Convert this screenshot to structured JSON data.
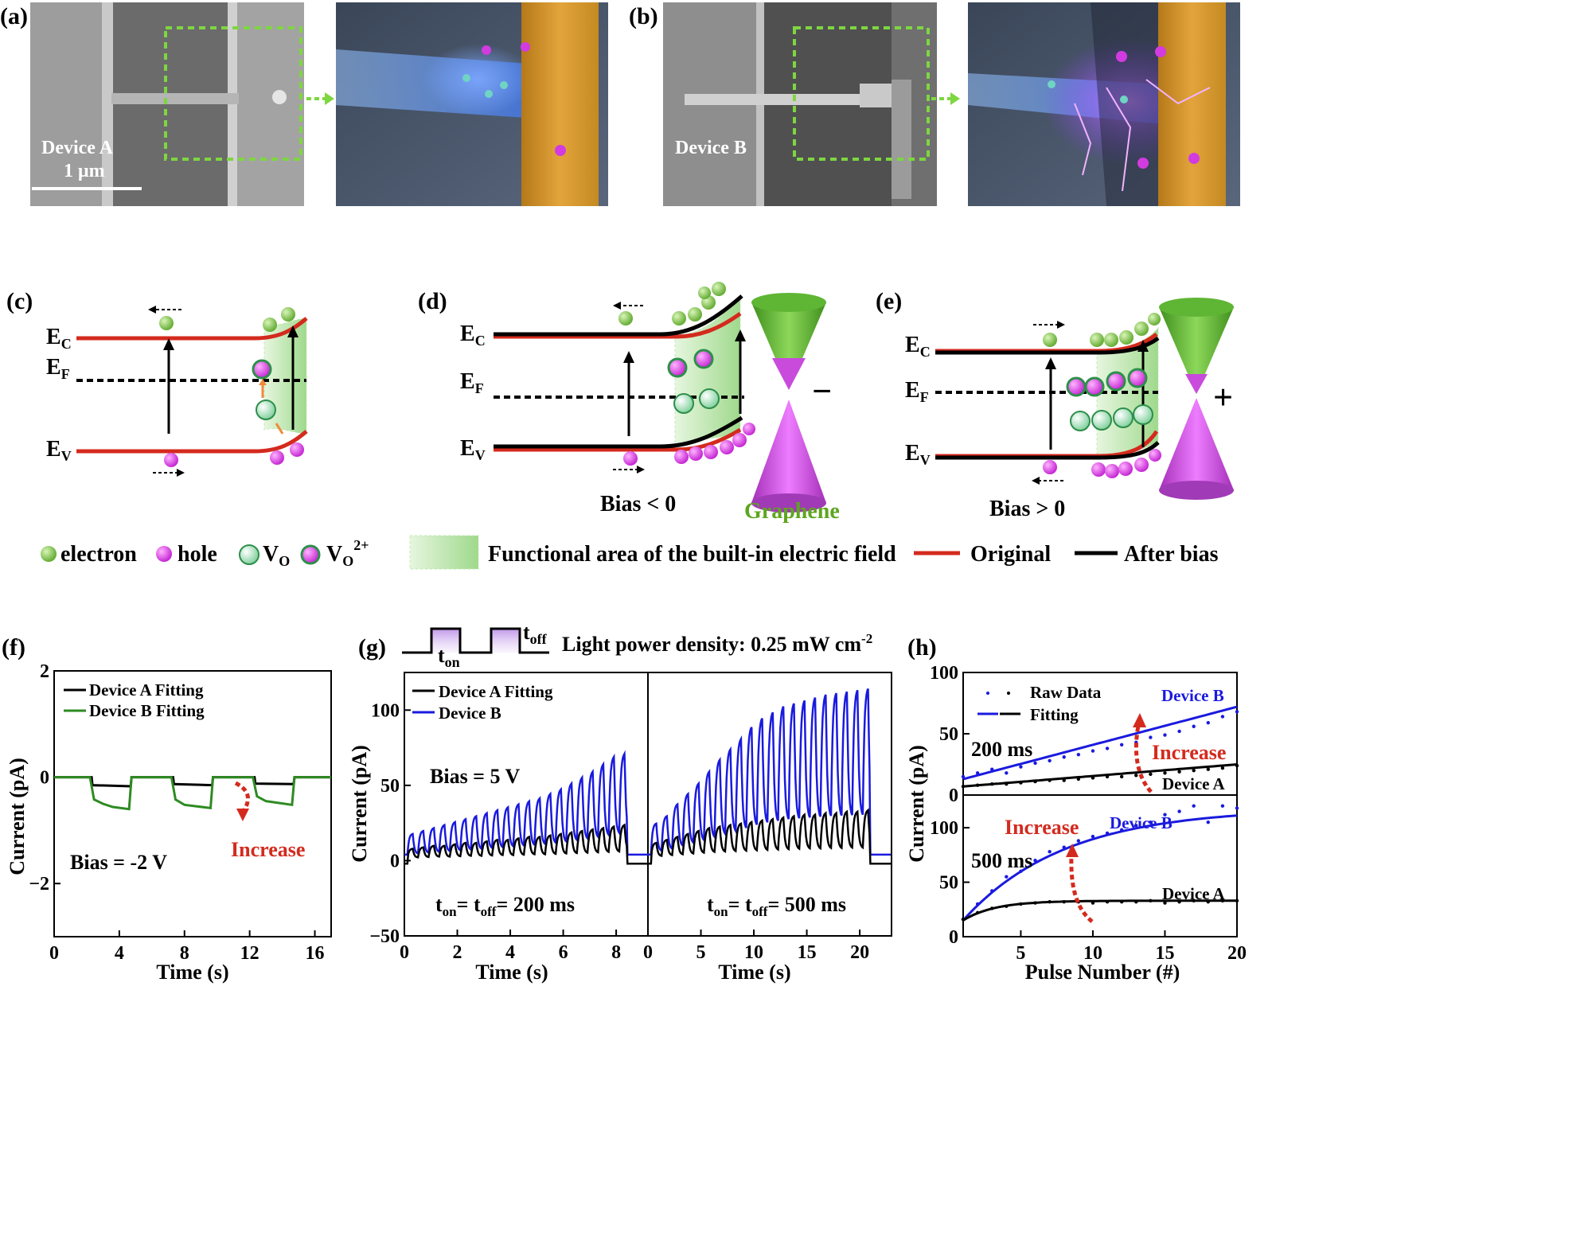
{
  "panels": {
    "a": {
      "label": "(a)",
      "device": "Device A",
      "scale": "1 μm"
    },
    "b": {
      "label": "(b)",
      "device": "Device B"
    },
    "c": {
      "label": "(c)",
      "ec": "E",
      "ec_sub": "C",
      "ef": "E",
      "ef_sub": "F",
      "ev": "E",
      "ev_sub": "V"
    },
    "d": {
      "label": "(d)",
      "ec": "E",
      "ec_sub": "C",
      "ef": "E",
      "ef_sub": "F",
      "ev": "E",
      "ev_sub": "V",
      "bias": "Bias < 0",
      "graphene": "Graphene",
      "sign": "−"
    },
    "e": {
      "label": "(e)",
      "ec": "E",
      "ec_sub": "C",
      "ef": "E",
      "ef_sub": "F",
      "ev": "E",
      "ev_sub": "V",
      "bias": "Bias > 0",
      "sign": "+"
    },
    "f": {
      "label": "(f)"
    },
    "g": {
      "label": "(g)",
      "pulse_on": "t",
      "pulse_on_sub": "on",
      "pulse_off": "t",
      "pulse_off_sub": "off",
      "light_power": "Light power density: 0.25 mW cm",
      "light_power_sup": "-2"
    },
    "h": {
      "label": "(h)"
    }
  },
  "legend": {
    "electron": "electron",
    "hole": "hole",
    "vo": "V",
    "vo_sub": "O",
    "vo2": "V",
    "vo2_sub": "O",
    "vo2_sup": "2+",
    "field": "Functional area of the built-in electric field",
    "original": "Original",
    "after_bias": "After bias"
  },
  "colors": {
    "original": "#d42a1e",
    "after_bias": "#000000",
    "device_a": "#000000",
    "device_b_f": "#2e8b22",
    "device_b": "#1a1adf",
    "increase": "#d42a1e",
    "electron": "#7dc243",
    "hole": "#d23be0",
    "field": "#9fd98c"
  },
  "chart_data": [
    {
      "id": "f",
      "type": "line",
      "title": "",
      "xlabel": "Time (s)",
      "ylabel": "Current (pA)",
      "xlim": [
        0,
        17
      ],
      "ylim": [
        -3,
        2
      ],
      "xticks": [
        0,
        4,
        8,
        12,
        16
      ],
      "yticks": [
        -2,
        0,
        2
      ],
      "series": [
        {
          "name": "Device A Fitting",
          "color": "#000000",
          "x": [
            0,
            2.3,
            2.35,
            4.7,
            4.75,
            7.3,
            7.35,
            9.7,
            9.75,
            12.3,
            12.35,
            14.7,
            14.75,
            17
          ],
          "y": [
            0,
            0,
            -0.15,
            -0.17,
            0,
            0,
            -0.13,
            -0.15,
            0,
            0,
            -0.12,
            -0.13,
            0,
            0
          ]
        },
        {
          "name": "Device B Fitting",
          "color": "#2e8b22",
          "x": [
            0,
            2.2,
            2.45,
            3.0,
            3.6,
            4.6,
            4.75,
            7.2,
            7.45,
            8.0,
            9.6,
            9.75,
            12.2,
            12.45,
            13.0,
            14.6,
            14.75,
            17
          ],
          "y": [
            0,
            0,
            -0.42,
            -0.5,
            -0.56,
            -0.6,
            0,
            0,
            -0.42,
            -0.52,
            -0.58,
            0,
            0,
            -0.36,
            -0.45,
            -0.52,
            0,
            0
          ]
        }
      ],
      "annotations": {
        "bias": "Bias = -2  V",
        "increase": "Increase"
      }
    },
    {
      "id": "g",
      "type": "line",
      "xlabel": "Time (s)",
      "ylabel": "Current (pA)",
      "ylim": [
        -50,
        125
      ],
      "yticks": [
        -50,
        0,
        50,
        100
      ],
      "legend": [
        "Device A Fitting",
        "Device B"
      ],
      "bias": "Bias = 5 V",
      "subplots": [
        {
          "xlim": [
            0,
            9.2
          ],
          "xticks": [
            0,
            2,
            4,
            6,
            8
          ],
          "period_s": 0.4,
          "pulses": 21,
          "annotation": "t",
          "ann_on": "on",
          "ann_eq": "= t",
          "ann_off": "off",
          "ann_val": "= 200 ms",
          "device_b_peaks": [
            18,
            20,
            22,
            24,
            26,
            28,
            30,
            32,
            34,
            36,
            38,
            40,
            42,
            45,
            48,
            52,
            56,
            60,
            65,
            70,
            72
          ],
          "device_a_peaks": [
            8,
            9,
            10,
            10,
            11,
            12,
            12,
            13,
            14,
            14,
            15,
            16,
            16,
            17,
            18,
            19,
            20,
            21,
            22,
            23,
            24
          ]
        },
        {
          "xlim": [
            0,
            23
          ],
          "xticks": [
            0,
            5,
            10,
            15,
            20
          ],
          "period_s": 1.0,
          "pulses": 21,
          "annotation": "t",
          "ann_on": "on",
          "ann_eq": "= t",
          "ann_off": "off",
          "ann_val": "= 500 ms",
          "device_b_peaks": [
            25,
            30,
            38,
            45,
            52,
            60,
            68,
            75,
            82,
            90,
            96,
            100,
            104,
            106,
            108,
            110,
            112,
            113,
            114,
            115,
            116
          ],
          "device_a_peaks": [
            12,
            14,
            16,
            18,
            20,
            22,
            23,
            24,
            25,
            26,
            27,
            28,
            29,
            30,
            31,
            31,
            32,
            32,
            33,
            33,
            34
          ]
        }
      ]
    },
    {
      "id": "h",
      "type": "scatter",
      "xlabel": "Pulse Number (#)",
      "ylabel": "Current (pA)",
      "xlim": [
        1,
        20
      ],
      "xticks": [
        5,
        10,
        15,
        20
      ],
      "legend": [
        "Raw Data",
        "Fitting"
      ],
      "subplots": [
        {
          "label": "200 ms",
          "ylim": [
            0,
            100
          ],
          "yticks": [
            0,
            50,
            100
          ],
          "device_b": {
            "name": "Device B",
            "raw": [
              15,
              18,
              21,
              18,
              23,
              26,
              28,
              31,
              33,
              36,
              38,
              41,
              43,
              47,
              49,
              52,
              56,
              59,
              64,
              68
            ],
            "fit_start": 13,
            "fit_end": 72
          },
          "device_a": {
            "name": "Device A",
            "raw": [
              7,
              8,
              9,
              9,
              10,
              11,
              12,
              12,
              13,
              14,
              15,
              15,
              16,
              17,
              18,
              19,
              20,
              21,
              22,
              24
            ],
            "fit_start": 7,
            "fit_end": 25
          },
          "increase": "Increase"
        },
        {
          "label": "500 ms",
          "ylim": [
            0,
            130
          ],
          "yticks": [
            0,
            50,
            100
          ],
          "device_b": {
            "name": "Device B",
            "raw": [
              16,
              30,
              42,
              55,
              60,
              70,
              78,
              82,
              88,
              92,
              95,
              98,
              102,
              105,
              112,
              115,
              120,
              105,
              120,
              118
            ],
            "fit_start": 15,
            "fit_end": 118
          },
          "device_a": {
            "name": "Device A",
            "raw": [
              16,
              22,
              26,
              28,
              30,
              31,
              32,
              32,
              32,
              31,
              32,
              32,
              32,
              33,
              31,
              32,
              33,
              32,
              33,
              33
            ],
            "fit_start": 15,
            "fit_end": 33
          },
          "increase": "Increase"
        }
      ]
    }
  ]
}
